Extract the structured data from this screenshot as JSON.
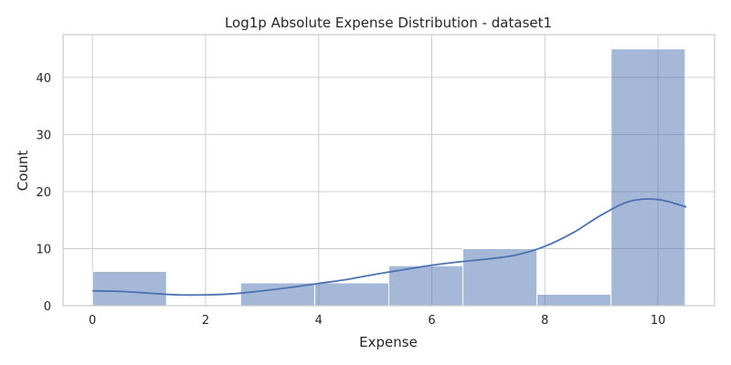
{
  "chart_data": {
    "type": "bar",
    "title": "Log1p Absolute Expense Distribution - dataset1",
    "xlabel": "Expense",
    "ylabel": "Count",
    "xlim": [
      -0.52,
      11.0
    ],
    "ylim": [
      0,
      47.5
    ],
    "xticks": [
      0,
      2,
      4,
      6,
      8,
      10
    ],
    "yticks": [
      0,
      10,
      20,
      30,
      40
    ],
    "grid": true,
    "bin_edges": [
      0,
      1.31,
      2.62,
      3.93,
      5.24,
      6.55,
      7.86,
      9.17,
      10.48
    ],
    "counts": [
      6,
      0,
      4,
      4,
      7,
      10,
      2,
      45
    ],
    "color": "#4c72b0",
    "kde": {
      "x": [
        0,
        0.5,
        1,
        1.5,
        2,
        2.5,
        3,
        3.5,
        4,
        4.5,
        5,
        5.5,
        6,
        6.5,
        7,
        7.5,
        8,
        8.5,
        9,
        9.5,
        10,
        10.5
      ],
      "y": [
        2.6,
        2.5,
        2.2,
        1.9,
        1.9,
        2.1,
        2.6,
        3.2,
        3.9,
        4.6,
        5.5,
        6.3,
        7.1,
        7.7,
        8.2,
        8.9,
        10.4,
        12.8,
        15.9,
        18.3,
        18.6,
        17.3
      ]
    }
  }
}
